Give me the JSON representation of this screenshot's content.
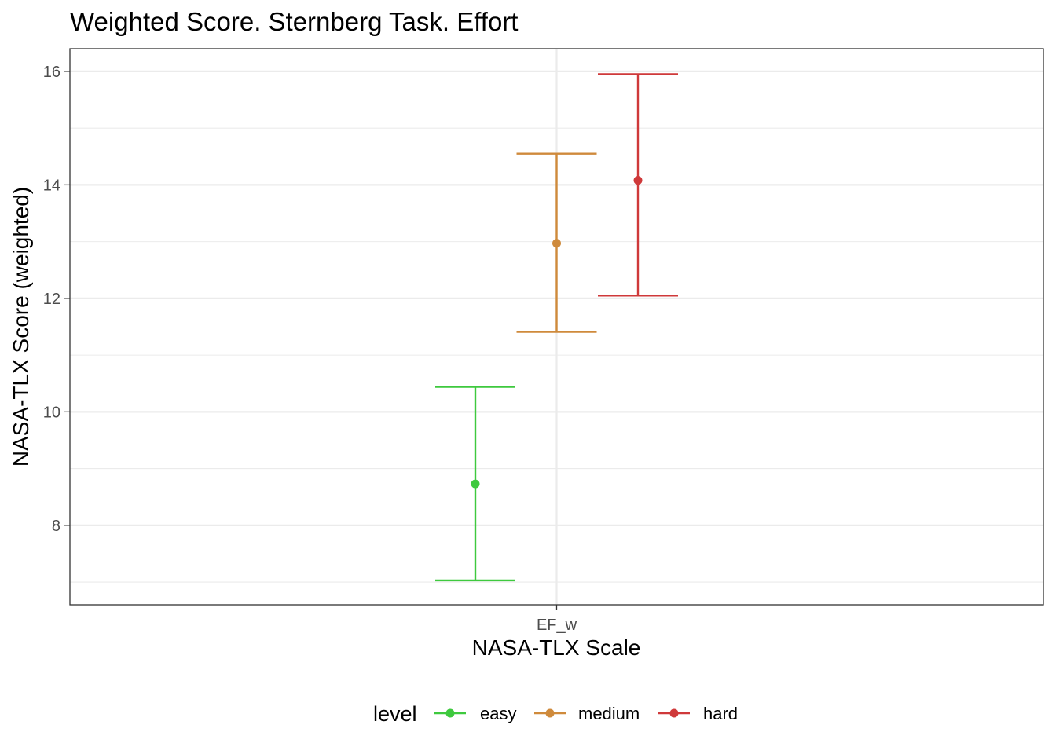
{
  "chart_data": {
    "type": "errorbar",
    "title": "Weighted Score. Sternberg Task. Effort",
    "xlabel": "NASA-TLX Scale",
    "ylabel": "NASA-TLX Score (weighted)",
    "categories": [
      "EF_w"
    ],
    "ylim": [
      6.6,
      16.4
    ],
    "y_ticks": [
      "8",
      "10",
      "12",
      "14",
      "16"
    ],
    "grid": true,
    "legend": {
      "title": "level",
      "position": "bottom"
    },
    "series": [
      {
        "name": "easy",
        "color": "#3ec93e",
        "mean": 8.73,
        "lower": 7.03,
        "upper": 10.44
      },
      {
        "name": "medium",
        "color": "#cf8a3b",
        "mean": 12.97,
        "lower": 11.41,
        "upper": 14.55
      },
      {
        "name": "hard",
        "color": "#cf393a",
        "mean": 14.08,
        "lower": 12.05,
        "upper": 15.95
      }
    ]
  }
}
